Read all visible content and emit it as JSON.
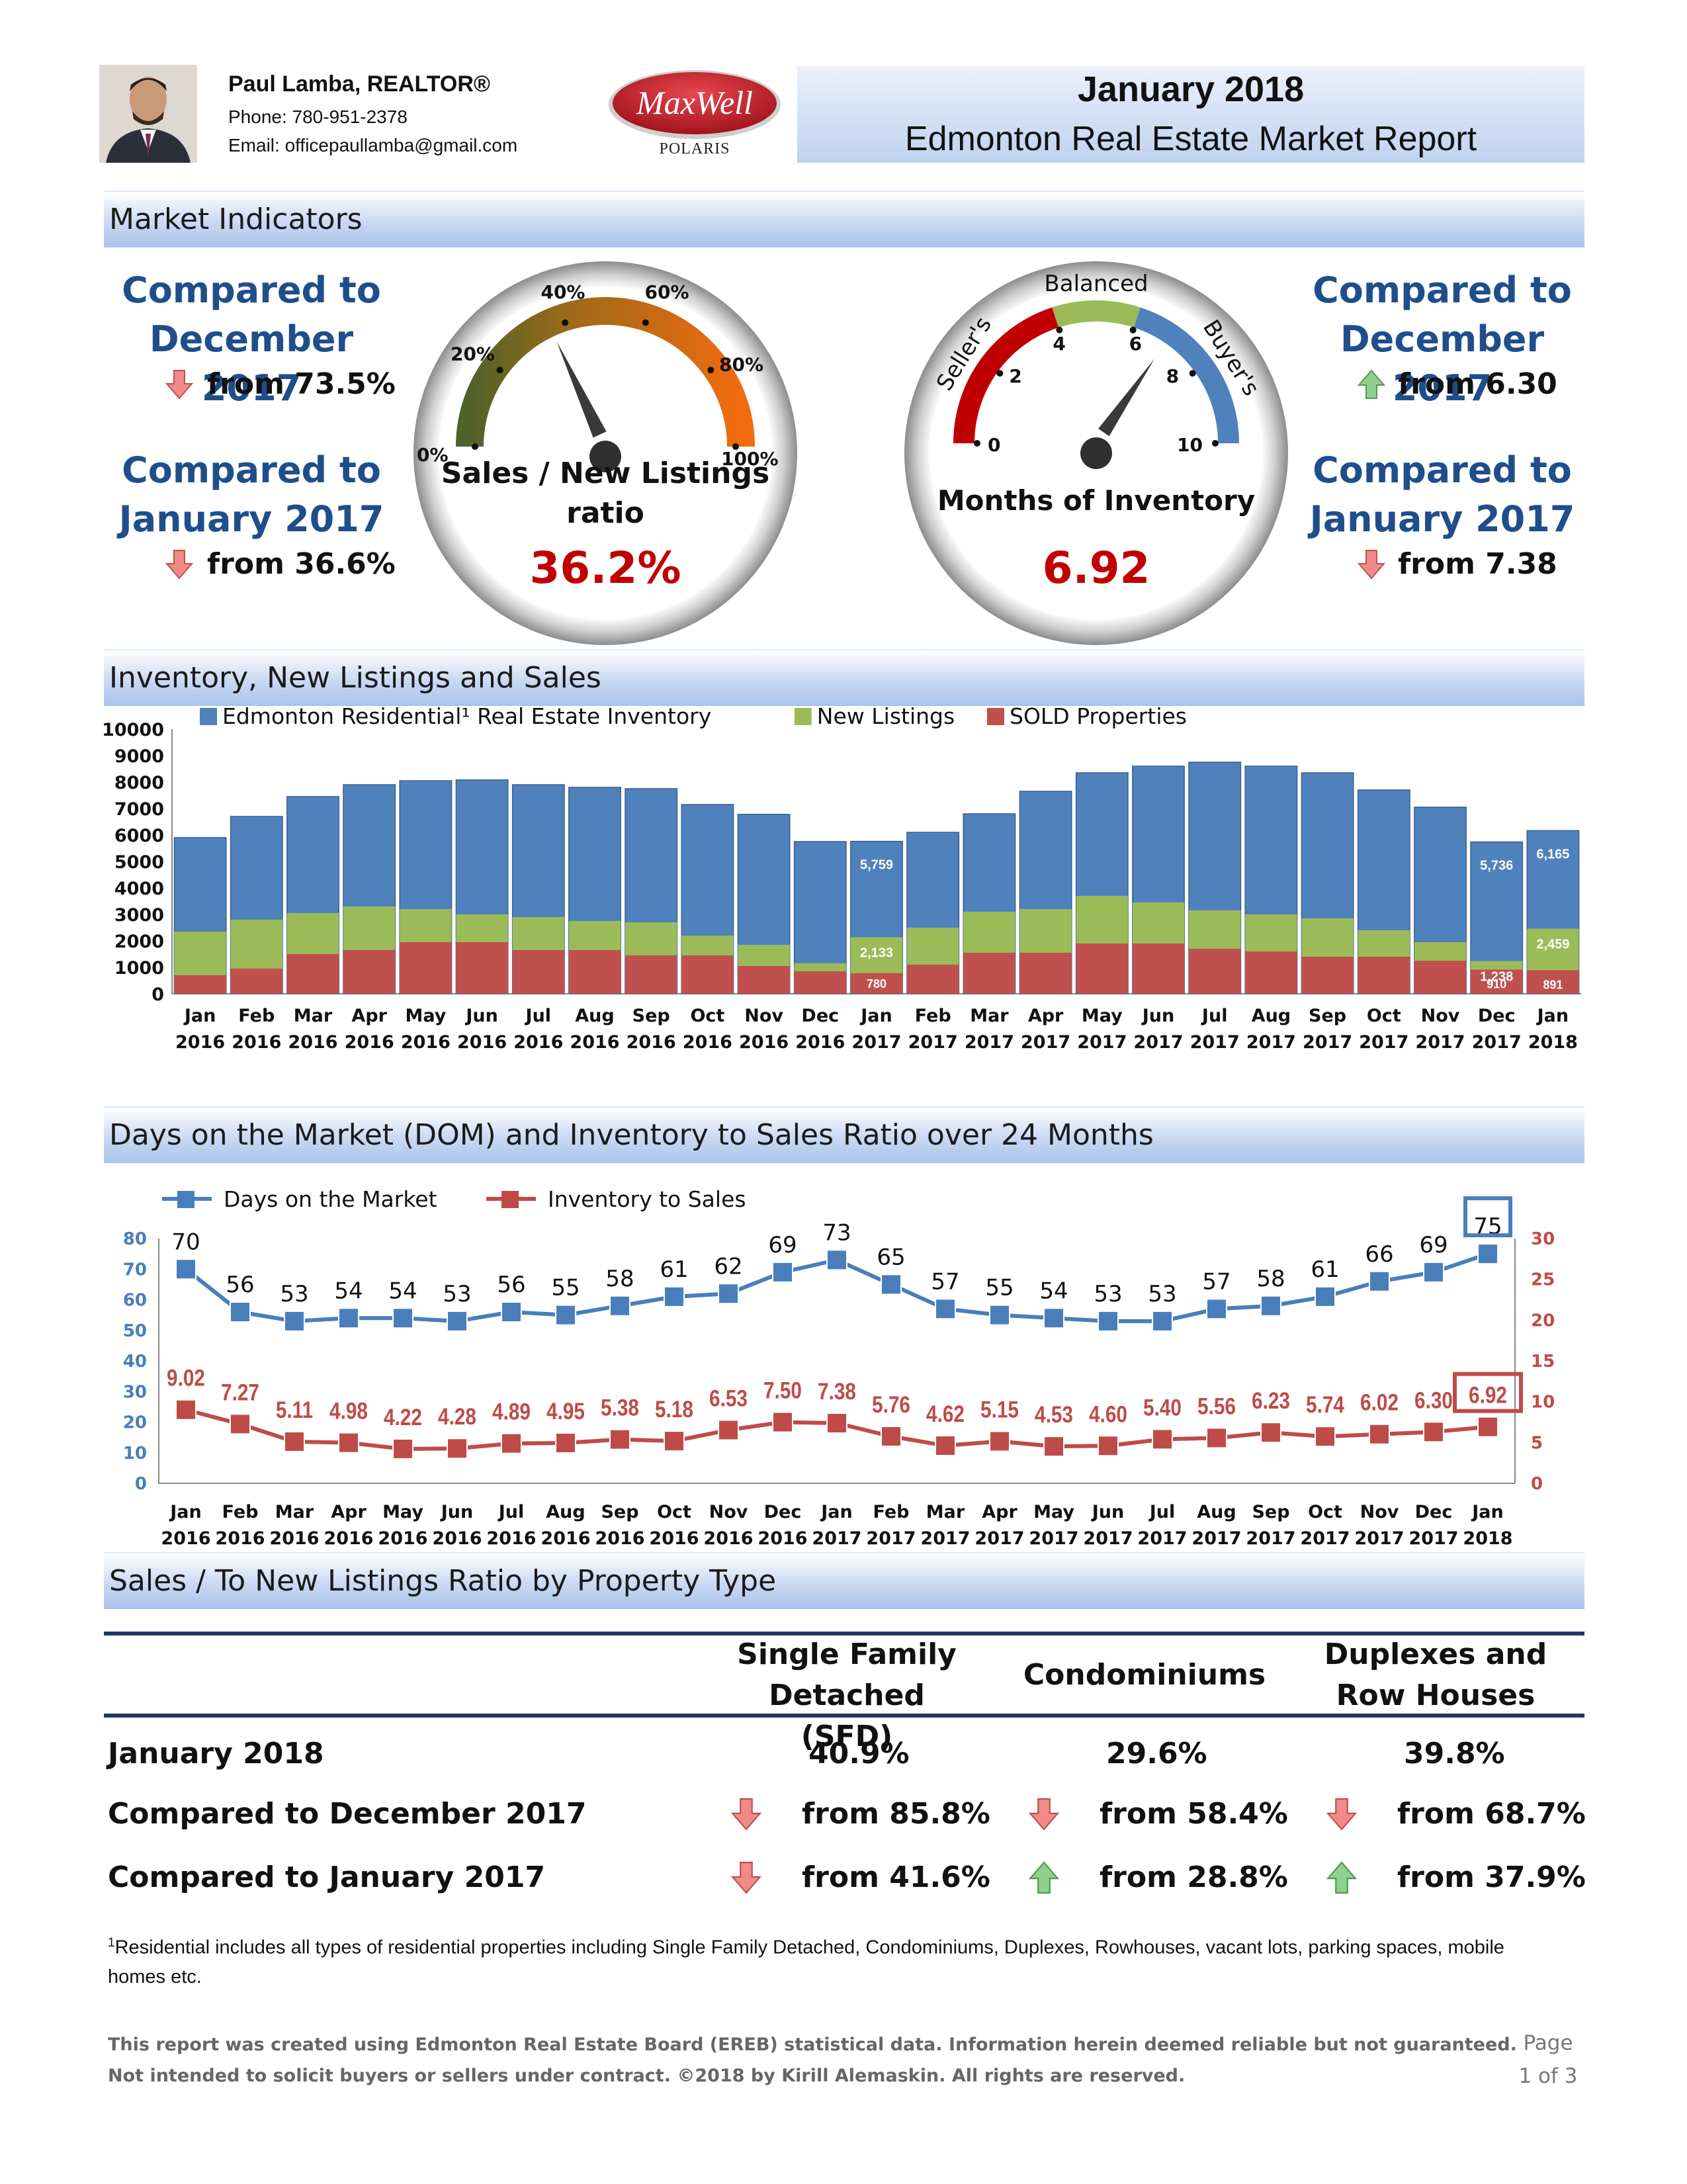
{
  "header": {
    "agent_name": "Paul Lamba, REALTOR®",
    "phone": "Phone: 780-951-2378",
    "email": "Email: officepaullamba@gmail.com",
    "brand_name": "MaxWell",
    "brand_sub": "POLARIS",
    "report_month": "January 2018",
    "report_title": "Edmonton Real Estate Market Report"
  },
  "sections": {
    "market_indicators": "Market Indicators",
    "inventory": "Inventory, New Listings and Sales",
    "dom": "Days on the Market (DOM) and Inventory to Sales Ratio over 24 Months",
    "by_type": "Sales / To New Listings Ratio by Property Type"
  },
  "indicators": {
    "left_prev_month_label": "Compared to December 2017",
    "left_prev_month_value": "from 73.5%",
    "left_prev_month_dir": "down",
    "left_prev_year_label": "Compared to January 2017",
    "left_prev_year_value": "from 36.6%",
    "left_prev_year_dir": "down",
    "right_prev_month_label": "Compared to December 2017",
    "right_prev_month_value": "from 6.30",
    "right_prev_month_dir": "up",
    "right_prev_year_label": "Compared to January 2017",
    "right_prev_year_value": "from 7.38",
    "right_prev_year_dir": "down",
    "gauge1": {
      "title_line1": "Sales / New Listings",
      "title_line2": "ratio",
      "value_text": "36.2%",
      "value": 36.2,
      "ticks": [
        "0%",
        "20%",
        "40%",
        "60%",
        "80%",
        "100%"
      ]
    },
    "gauge2": {
      "title": "Months of Inventory",
      "value_text": "6.92",
      "value": 6.92,
      "ticks": [
        "0",
        "2",
        "4",
        "6",
        "8",
        "10"
      ],
      "zones": [
        "Seller's",
        "Balanced",
        "Buyer's"
      ]
    }
  },
  "colors": {
    "inventory": "#4f81bd",
    "new_listings": "#9bbb59",
    "sold": "#c0504d",
    "dom_line": "#4a7ebb",
    "ratio_line": "#be4b48",
    "value_red": "#c00000",
    "heading_blue": "#1f4e8c"
  },
  "chart_data": [
    {
      "type": "bar",
      "categories": [
        "Jan 2016",
        "Feb 2016",
        "Mar 2016",
        "Apr 2016",
        "May 2016",
        "Jun 2016",
        "Jul 2016",
        "Aug 2016",
        "Sep 2016",
        "Oct 2016",
        "Nov 2016",
        "Dec 2016",
        "Jan 2017",
        "Feb 2017",
        "Mar 2017",
        "Apr 2017",
        "May 2017",
        "Jun 2017",
        "Jul 2017",
        "Aug 2017",
        "Sep 2017",
        "Oct 2017",
        "Nov 2017",
        "Dec 2017",
        "Jan 2018"
      ],
      "series": [
        {
          "name": "Edmonton Residential¹ Real Estate Inventory",
          "values": [
            5900,
            6700,
            7450,
            7900,
            8050,
            8080,
            7900,
            7800,
            7750,
            7150,
            6780,
            5750,
            5759,
            6100,
            6800,
            7650,
            8350,
            8600,
            8750,
            8600,
            8350,
            7700,
            7050,
            5736,
            6165
          ]
        },
        {
          "name": "New Listings",
          "values": [
            2350,
            2800,
            3050,
            3300,
            3200,
            3000,
            2900,
            2750,
            2700,
            2200,
            1850,
            1150,
            2133,
            2500,
            3100,
            3200,
            3700,
            3450,
            3150,
            3000,
            2850,
            2400,
            1950,
            1238,
            2459
          ]
        },
        {
          "name": "SOLD Properties",
          "values": [
            700,
            950,
            1500,
            1650,
            1950,
            1950,
            1650,
            1650,
            1450,
            1450,
            1050,
            850,
            780,
            1100,
            1550,
            1550,
            1900,
            1900,
            1700,
            1600,
            1400,
            1400,
            1250,
            910,
            891
          ]
        }
      ],
      "labels": [
        {
          "index": 12,
          "inventory": "5,759",
          "new_listings": "2,133",
          "sold": "780"
        },
        {
          "index": 23,
          "inventory": "5,736",
          "new_listings": "1,238",
          "sold": "910"
        },
        {
          "index": 24,
          "inventory": "6,165",
          "new_listings": "2,459",
          "sold": "891"
        }
      ],
      "ylim": [
        0,
        10000
      ],
      "yticks": [
        "0",
        "1000",
        "2000",
        "3000",
        "4000",
        "5000",
        "6000",
        "7000",
        "8000",
        "9000",
        "10000"
      ],
      "legend": "top"
    },
    {
      "type": "line",
      "categories": [
        "Jan 2016",
        "Feb 2016",
        "Mar 2016",
        "Apr 2016",
        "May 2016",
        "Jun 2016",
        "Jul 2016",
        "Aug 2016",
        "Sep 2016",
        "Oct 2016",
        "Nov 2016",
        "Dec 2016",
        "Jan 2017",
        "Feb 2017",
        "Mar 2017",
        "Apr 2017",
        "May 2017",
        "Jun 2017",
        "Jul 2017",
        "Aug 2017",
        "Sep 2017",
        "Oct 2017",
        "Nov 2017",
        "Dec 2017",
        "Jan 2018"
      ],
      "series": [
        {
          "name": "Days on the Market",
          "axis": "left",
          "values": [
            70,
            56,
            53,
            54,
            54,
            53,
            56,
            55,
            58,
            61,
            62,
            69,
            73,
            65,
            57,
            55,
            54,
            53,
            53,
            57,
            58,
            61,
            66,
            69,
            75
          ],
          "labels": [
            "70",
            "56",
            "53",
            "54",
            "54",
            "53",
            "56",
            "55",
            "58",
            "61",
            "62",
            "69",
            "73",
            "65",
            "57",
            "55",
            "54",
            "53",
            "53",
            "57",
            "58",
            "61",
            "66",
            "69",
            "75"
          ]
        },
        {
          "name": "Inventory to Sales",
          "axis": "right",
          "values": [
            9.02,
            7.27,
            5.11,
            4.98,
            4.22,
            4.28,
            4.89,
            4.95,
            5.38,
            5.18,
            6.53,
            7.5,
            7.38,
            5.76,
            4.62,
            5.15,
            4.53,
            4.6,
            5.4,
            5.56,
            6.23,
            5.74,
            6.02,
            6.3,
            6.92
          ],
          "labels": [
            "9.02",
            "7.27",
            "5.11",
            "4.98",
            "4.22",
            "4.28",
            "4.89",
            "4.95",
            "5.38",
            "5.18",
            "6.53",
            "7.50",
            "7.38",
            "5.76",
            "4.62",
            "5.15",
            "4.53",
            "4.60",
            "5.40",
            "5.56",
            "6.23",
            "5.74",
            "6.02",
            "6.30",
            "6.92"
          ]
        }
      ],
      "ylim_left": [
        0,
        80
      ],
      "yticks_left": [
        "0",
        "10",
        "20",
        "30",
        "40",
        "50",
        "60",
        "70",
        "80"
      ],
      "ylim_right": [
        0,
        30
      ],
      "yticks_right": [
        "0",
        "5",
        "10",
        "15",
        "20",
        "25",
        "30"
      ],
      "legend": "top-left"
    }
  ],
  "property_table": {
    "headers": [
      "Single Family Detached (SFD)",
      "Condominiums",
      "Duplexes and Row Houses"
    ],
    "rows": [
      {
        "label": "January 2018",
        "values": [
          "40.9%",
          "29.6%",
          "39.8%"
        ],
        "dirs": [
          "",
          "",
          ""
        ]
      },
      {
        "label": "Compared to December 2017",
        "values": [
          "from 85.8%",
          "from 58.4%",
          "from 68.7%"
        ],
        "dirs": [
          "down",
          "down",
          "down"
        ]
      },
      {
        "label": "Compared to January 2017",
        "values": [
          "from 41.6%",
          "from 28.8%",
          "from 37.9%"
        ],
        "dirs": [
          "down",
          "up",
          "up"
        ]
      }
    ]
  },
  "footnote": {
    "marker": "1",
    "text": "Residential includes all types of residential properties including Single Family Detached, Condominiums, Duplexes, Rowhouses, vacant lots, parking spaces, mobile homes etc."
  },
  "footer": {
    "line1": "This report was created using Edmonton Real Estate Board (EREB) statistical data. Information herein deemed reliable but not guaranteed.",
    "line2": "Not intended to solicit buyers or sellers under contract. ©2018 by Kirill Alemaskin. All rights are reserved.",
    "page_label": "Page",
    "page_num": "1 of 3"
  }
}
